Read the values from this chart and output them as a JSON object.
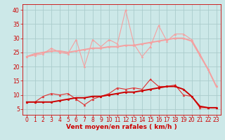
{
  "x": [
    0,
    1,
    2,
    3,
    4,
    5,
    6,
    7,
    8,
    9,
    10,
    11,
    12,
    13,
    14,
    15,
    16,
    17,
    18,
    19,
    20,
    21,
    22,
    23
  ],
  "series": [
    {
      "name": "rafales_light1",
      "color": "#f4a0a0",
      "linewidth": 0.8,
      "marker": "^",
      "markersize": 2.0,
      "y": [
        23.5,
        24.0,
        24.5,
        26.5,
        25.0,
        24.5,
        29.5,
        20.0,
        29.5,
        27.0,
        29.5,
        28.0,
        40.0,
        28.0,
        23.5,
        27.0,
        34.5,
        29.0,
        31.5,
        31.5,
        29.5,
        24.5,
        19.0,
        13.0
      ]
    },
    {
      "name": "vent_moyen_light",
      "color": "#f4a0a0",
      "linewidth": 1.4,
      "marker": "o",
      "markersize": 1.8,
      "y": [
        23.5,
        24.5,
        25.0,
        25.5,
        25.5,
        25.0,
        25.5,
        26.0,
        26.5,
        26.5,
        27.0,
        27.0,
        27.5,
        27.5,
        28.0,
        28.5,
        29.0,
        29.5,
        30.0,
        30.0,
        29.0,
        24.0,
        19.0,
        13.0
      ]
    },
    {
      "name": "rafales_dark",
      "color": "#e03030",
      "linewidth": 0.8,
      "marker": "^",
      "markersize": 2.0,
      "y": [
        7.5,
        7.5,
        9.5,
        10.5,
        10.0,
        10.5,
        8.5,
        6.5,
        8.5,
        9.5,
        10.5,
        12.5,
        12.0,
        12.5,
        12.0,
        15.5,
        13.0,
        13.0,
        13.5,
        10.0,
        9.5,
        5.5,
        5.5,
        5.5
      ]
    },
    {
      "name": "vent_moyen_dark",
      "color": "#cc0000",
      "linewidth": 1.4,
      "marker": "o",
      "markersize": 1.8,
      "y": [
        7.5,
        7.5,
        7.5,
        7.5,
        8.0,
        8.5,
        9.0,
        9.0,
        9.5,
        9.5,
        10.0,
        10.5,
        11.0,
        11.0,
        11.5,
        12.0,
        12.5,
        13.0,
        13.0,
        12.0,
        9.5,
        6.0,
        5.5,
        5.5
      ]
    }
  ],
  "bg_color": "#cce8e8",
  "grid_color": "#aacccc",
  "xlabel": "Vent moyen/en rafales ( km/h )",
  "xlim": [
    -0.5,
    23.5
  ],
  "ylim": [
    3,
    42
  ],
  "yticks": [
    5,
    10,
    15,
    20,
    25,
    30,
    35,
    40
  ],
  "xticks": [
    0,
    1,
    2,
    3,
    4,
    5,
    6,
    7,
    8,
    9,
    10,
    11,
    12,
    13,
    14,
    15,
    16,
    17,
    18,
    19,
    20,
    21,
    22,
    23
  ],
  "tick_color": "#cc0000",
  "label_color": "#cc0000",
  "label_fontsize": 6.5,
  "tick_fontsize": 5.5
}
